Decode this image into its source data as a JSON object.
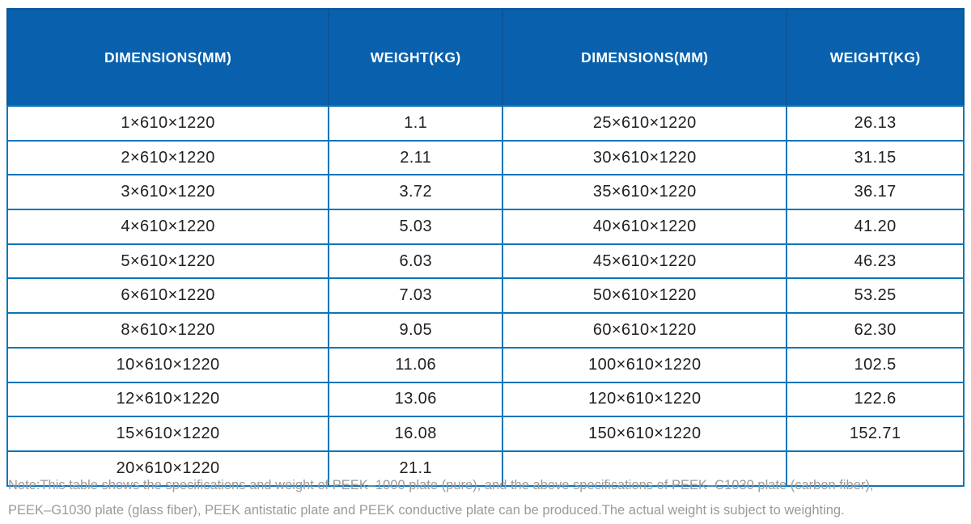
{
  "table": {
    "headers": [
      "DIMENSIONS(MM)",
      "WEIGHT(KG)",
      "DIMENSIONS(MM)",
      "WEIGHT(KG)"
    ],
    "rows": [
      [
        "1×610×1220",
        "1.1",
        "25×610×1220",
        "26.13"
      ],
      [
        "2×610×1220",
        "2.11",
        "30×610×1220",
        "31.15"
      ],
      [
        "3×610×1220",
        "3.72",
        "35×610×1220",
        "36.17"
      ],
      [
        "4×610×1220",
        "5.03",
        "40×610×1220",
        "41.20"
      ],
      [
        "5×610×1220",
        "6.03",
        "45×610×1220",
        "46.23"
      ],
      [
        "6×610×1220",
        "7.03",
        "50×610×1220",
        "53.25"
      ],
      [
        "8×610×1220",
        "9.05",
        "60×610×1220",
        "62.30"
      ],
      [
        "10×610×1220",
        "11.06",
        "100×610×1220",
        "102.5"
      ],
      [
        "12×610×1220",
        "13.06",
        "120×610×1220",
        "122.6"
      ],
      [
        "15×610×1220",
        "16.08",
        "150×610×1220",
        "152.71"
      ],
      [
        "20×610×1220",
        "21.1",
        "",
        ""
      ]
    ]
  },
  "note": {
    "line1": "Note:This table shows the specifications and weight of PEEK–1000 plate (pure), and the above specifications of PEEK–C1030 plate (carbon fiber),",
    "line2": "PEEK–G1030 plate (glass fiber), PEEK antistatic plate and PEEK conductive plate can be produced.The actual weight is subject to weighting."
  },
  "colors": {
    "header_background": "#0961ad",
    "header_text": "#ffffff",
    "grid_border": "#0c74ba",
    "header_seam": "#09569c",
    "body_text": "#1f1f1f",
    "note_text": "#9a9a9a"
  }
}
